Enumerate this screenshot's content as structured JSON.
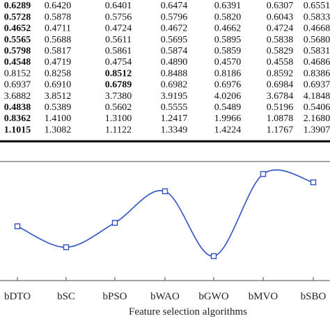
{
  "table": {
    "rows": [
      [
        {
          "text": "0.6289",
          "bold": true
        },
        "0.6420",
        "0.6401",
        "0.6474",
        "0.6391",
        "0.6307",
        "0.6551"
      ],
      [
        {
          "text": "0.5728",
          "bold": true
        },
        "0.5878",
        "0.5756",
        "0.5796",
        "0.5820",
        "0.6043",
        "0.5833"
      ],
      [
        {
          "text": "0.4652",
          "bold": true
        },
        "0.4711",
        "0.4724",
        "0.4672",
        "0.4662",
        "0.4724",
        "0.4668"
      ],
      [
        {
          "text": "0.5565",
          "bold": true
        },
        "0.5688",
        "0.5611",
        "0.5695",
        "0.5895",
        "0.5838",
        "0.5680"
      ],
      [
        {
          "text": "0.5798",
          "bold": true
        },
        "0.5817",
        "0.5861",
        "0.5874",
        "0.5859",
        "0.5829",
        "0.5831"
      ],
      [
        {
          "text": "0.4548",
          "bold": true
        },
        "0.4719",
        "0.4754",
        "0.4890",
        "0.4570",
        "0.4558",
        "0.4686"
      ],
      [
        "0.8152",
        "0.8258",
        {
          "text": "0.8512",
          "bold": true
        },
        "0.8488",
        "0.8186",
        "0.8592",
        "0.8386"
      ],
      [
        "0.6937",
        "0.6910",
        {
          "text": "0.6789",
          "bold": true
        },
        "0.6982",
        "0.6976",
        "0.6984",
        "0.6937"
      ],
      [
        "3.6882",
        "3.8512",
        "3.7380",
        "3.9195",
        "4.0206",
        "3.6784",
        "4.1848"
      ],
      [
        {
          "text": "0.4838",
          "bold": true
        },
        "0.5389",
        "0.5602",
        "0.5555",
        "0.5489",
        "0.5196",
        "0.5406"
      ],
      [
        {
          "text": "0.8362",
          "bold": true
        },
        "1.4100",
        "1.3100",
        "1.2417",
        "1.9966",
        "1.0878",
        "2.1680"
      ],
      [
        {
          "text": "1.1015",
          "bold": true
        },
        "1.3082",
        "1.1122",
        "1.3349",
        "1.4224",
        "1.1767",
        "1.3907"
      ]
    ]
  },
  "chart_data": {
    "type": "line",
    "xlabel": "Feature selection algorithms",
    "categories": [
      "bDTO",
      "bSC",
      "bPSO",
      "bWAO",
      "bGWO",
      "bMVO",
      "bSBO"
    ],
    "ylim": [
      0,
      1
    ],
    "series": [
      {
        "color": "#2f4fc4",
        "values": [
          0.456,
          0.28,
          0.485,
          0.75,
          0.205,
          0.895,
          0.825
        ]
      }
    ]
  }
}
